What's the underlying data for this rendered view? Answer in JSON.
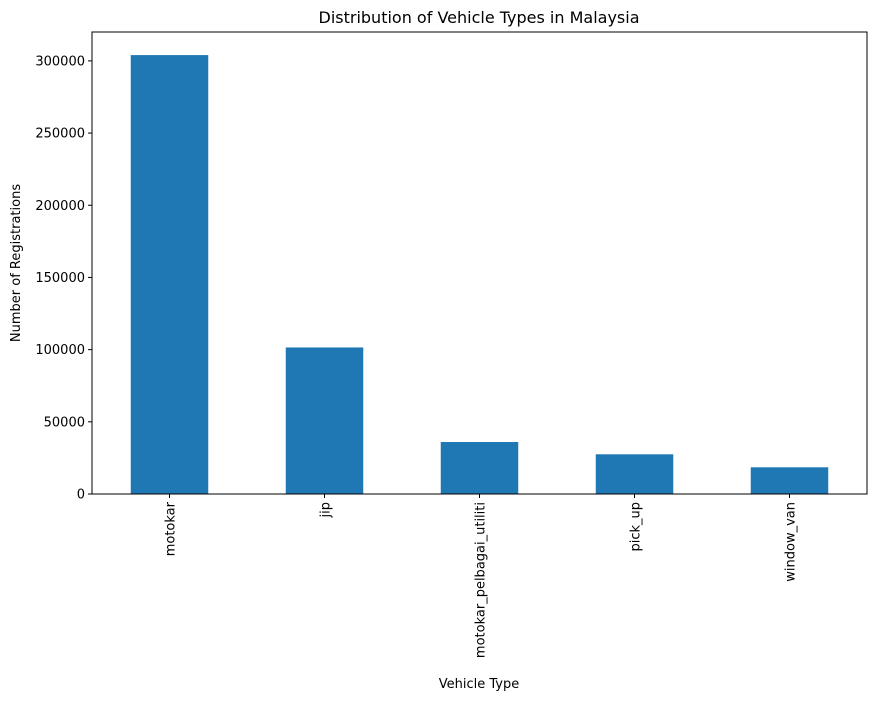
{
  "chart_data": {
    "type": "bar",
    "title": "Distribution of Vehicle Types in Malaysia",
    "xlabel": "Vehicle Type",
    "ylabel": "Number of Registrations",
    "categories": [
      "motokar",
      "jip",
      "motokar_pelbagai_utiliti",
      "pick_up",
      "window_van"
    ],
    "values": [
      304000,
      101500,
      36000,
      27500,
      18500
    ],
    "yticks": [
      0,
      50000,
      100000,
      150000,
      200000,
      250000,
      300000
    ],
    "ylim": [
      0,
      320000
    ],
    "bar_color": "#1f77b4",
    "grid": false,
    "legend": "none"
  }
}
